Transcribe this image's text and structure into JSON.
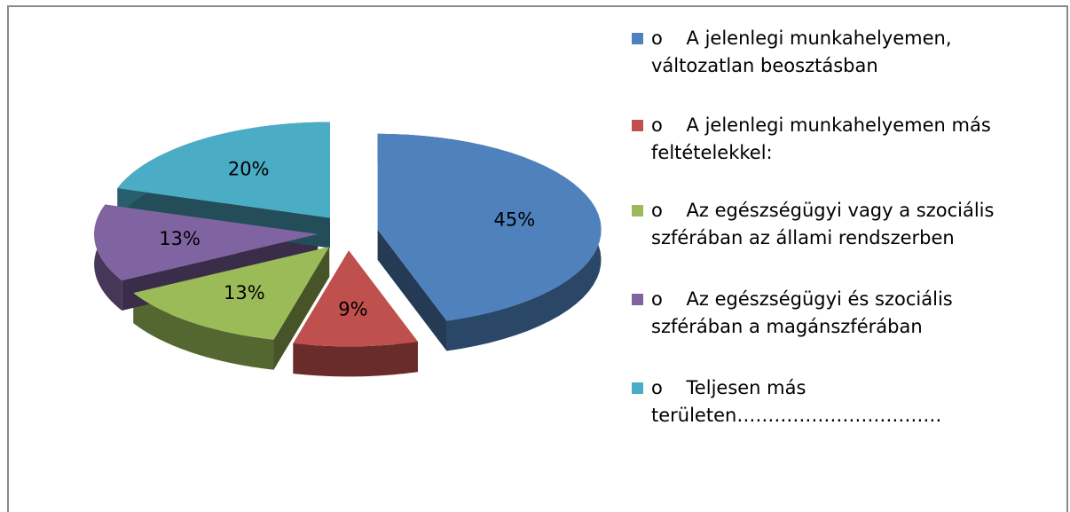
{
  "chart_data": {
    "type": "pie",
    "categories": [
      "o    A jelenlegi munkahelyemen, változatlan beosztásban",
      "o    A jelenlegi munkahelyemen más feltételekkel:",
      "o    Az egészségügyi vagy a szociális szférában az állami rendszerben",
      "o    Az egészségügyi és szociális szférában a magánszférában",
      "o    Teljesen más területen……………………………"
    ],
    "values": [
      45,
      9,
      13,
      13,
      20
    ],
    "value_labels": [
      "45%",
      "9%",
      "13%",
      "13%",
      "20%"
    ],
    "colors": [
      "#4f81bd",
      "#c0504d",
      "#9bbb59",
      "#8064a2",
      "#4bacc6"
    ],
    "legend": "right"
  }
}
